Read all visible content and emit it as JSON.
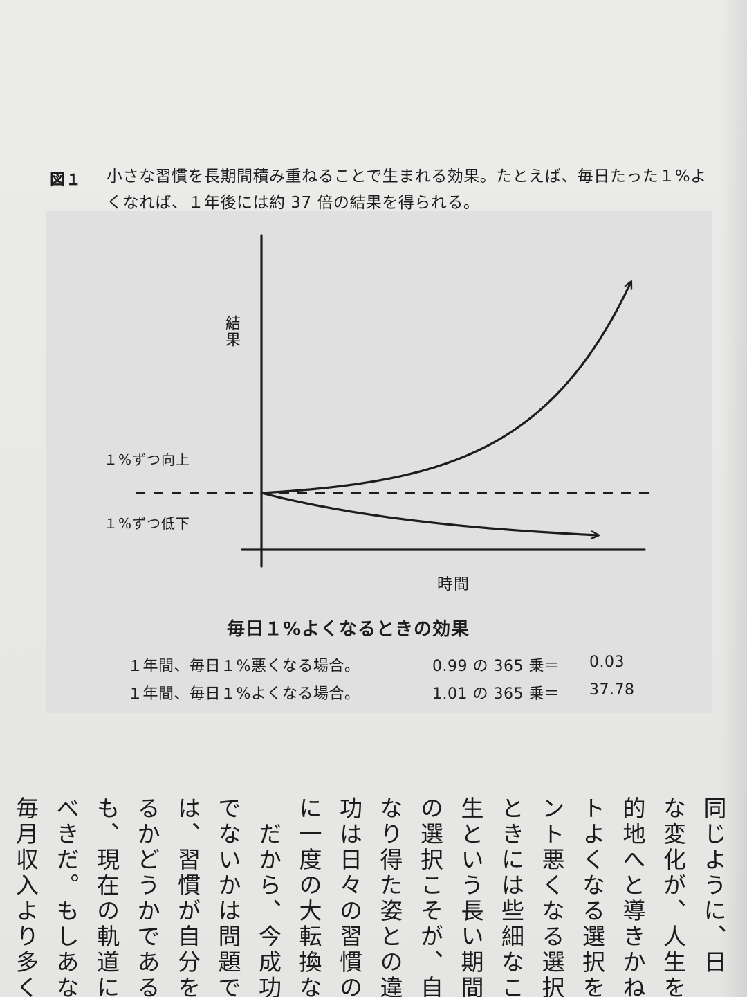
{
  "figure": {
    "label": "図１",
    "caption": "小さな習慣を長期間積み重ねることで生まれる効果。たとえば、毎日たった１%よくなれば、１年後には約 37 倍の結果を得られる。"
  },
  "chart_data": {
    "type": "line",
    "xlabel": "時間",
    "ylabel": "結果",
    "series": [
      {
        "name": "１%ずつ向上",
        "trend": "exponential growth",
        "factor_per_day": 1.01,
        "end_value": 37.78
      },
      {
        "name": "１%ずつ低下",
        "trend": "exponential decay",
        "factor_per_day": 0.99,
        "end_value": 0.03
      }
    ],
    "baseline": {
      "value": 1,
      "style": "dashed"
    },
    "grid": false
  },
  "summary": {
    "title": "毎日１%よくなるときの効果",
    "rows": [
      {
        "condition": "１年間、毎日１%悪くなる場合。",
        "calculation": "0.99 の 365 乗＝",
        "result": "0.03"
      },
      {
        "condition": "１年間、毎日１%よくなる場合。",
        "calculation": "1.01 の 365 乗＝",
        "result": "37.78"
      }
    ]
  },
  "body_columns": [
    "同じように、日",
    "な変化が、人生を",
    "的地へと導きかね",
    "トよくなる選択を",
    "ント悪くなる選択",
    "ときには些細なこ",
    "生という長い期間",
    "の選択こそが、自",
    "なり得た姿との違",
    "功は日々の習慣の",
    "に一度の大転換な",
    "　だから、今成功",
    "でないかは問題では",
    "は、習慣が自分を成",
    "るかどうかである。",
    "も、現在の軌道に",
    "べきだ。もしあなた",
    "毎月収入より多くの"
  ]
}
